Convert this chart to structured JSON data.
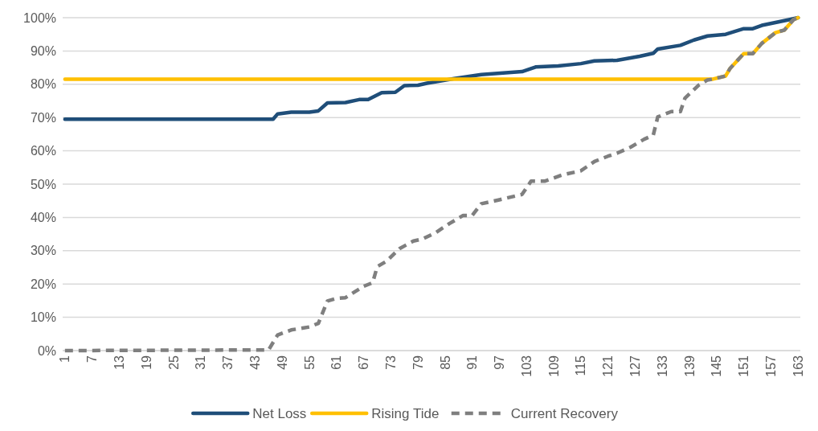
{
  "chart_data": {
    "type": "line",
    "xlim": [
      0.5,
      163.5
    ],
    "xticks": [
      1,
      7,
      13,
      19,
      25,
      31,
      37,
      43,
      49,
      55,
      61,
      67,
      73,
      79,
      85,
      91,
      97,
      103,
      109,
      115,
      121,
      127,
      133,
      139,
      145,
      151,
      157,
      163
    ],
    "ylim": [
      0,
      100
    ],
    "yticks": [
      {
        "value": 0,
        "label": "0%"
      },
      {
        "value": 10,
        "label": "10%"
      },
      {
        "value": 20,
        "label": "20%"
      },
      {
        "value": 30,
        "label": "30%"
      },
      {
        "value": 40,
        "label": "40%"
      },
      {
        "value": 50,
        "label": "50%"
      },
      {
        "value": 60,
        "label": "60%"
      },
      {
        "value": 70,
        "label": "70%"
      },
      {
        "value": 80,
        "label": "80%"
      },
      {
        "value": 90,
        "label": "90%"
      },
      {
        "value": 100,
        "label": "100%"
      }
    ],
    "grid": "y",
    "legend": "bottom",
    "marker": "none",
    "series": [
      {
        "name": "Net Loss",
        "color": "#1f4e79",
        "line_style": "solid",
        "x": [
          1,
          47,
          48,
          51,
          55,
          57,
          59,
          63,
          66,
          68,
          71,
          74,
          76,
          79,
          81,
          87,
          93,
          102,
          105,
          110,
          115,
          118,
          123,
          128,
          131,
          132,
          137,
          140,
          143,
          147,
          151,
          153,
          155,
          161,
          163
        ],
        "values": [
          69.5,
          69.5,
          71.1,
          71.6,
          71.6,
          72.0,
          74.4,
          74.5,
          75.4,
          75.4,
          77.5,
          77.6,
          79.6,
          79.7,
          80.3,
          81.7,
          82.9,
          83.8,
          85.2,
          85.5,
          86.2,
          87.0,
          87.2,
          88.4,
          89.3,
          90.6,
          91.7,
          93.3,
          94.5,
          95.0,
          96.7,
          96.7,
          97.7,
          99.4,
          100
        ]
      },
      {
        "name": "Rising Tide",
        "color": "#ffc000",
        "line_style": "solid",
        "x": [
          1,
          144,
          147,
          148,
          151,
          153,
          155,
          158,
          160,
          162,
          163
        ],
        "values": [
          81.5,
          81.5,
          82.5,
          84.8,
          89.2,
          89.2,
          92.3,
          95.5,
          96.3,
          99.4,
          100
        ]
      },
      {
        "name": "Current Recovery",
        "color": "#7f7f7f",
        "line_style": "dashed",
        "x": [
          1,
          46,
          48,
          51,
          55,
          57,
          59,
          61,
          63,
          67,
          69,
          70,
          72,
          75,
          78,
          80,
          83,
          86,
          89,
          91,
          93,
          97,
          102,
          104,
          107,
          111,
          115,
          118,
          121,
          123,
          126,
          129,
          131,
          132,
          135,
          137,
          138,
          141,
          143,
          144,
          147,
          148,
          151,
          153,
          155,
          158,
          160,
          162,
          163
        ],
        "values": [
          0,
          0.2,
          4.7,
          6.2,
          7.1,
          8.2,
          14.9,
          15.7,
          15.9,
          19.3,
          20.4,
          25.2,
          26.8,
          30.7,
          32.9,
          33.5,
          35.5,
          38.2,
          40.6,
          40.6,
          44.1,
          45.3,
          46.9,
          50.9,
          50.9,
          52.8,
          54.0,
          56.8,
          58.4,
          59.3,
          61.1,
          63.5,
          64.7,
          70.2,
          71.8,
          71.8,
          75.8,
          79.7,
          81.3,
          81.5,
          82.5,
          84.8,
          89.2,
          89.2,
          92.3,
          95.5,
          96.3,
          99.4,
          100
        ]
      }
    ]
  }
}
